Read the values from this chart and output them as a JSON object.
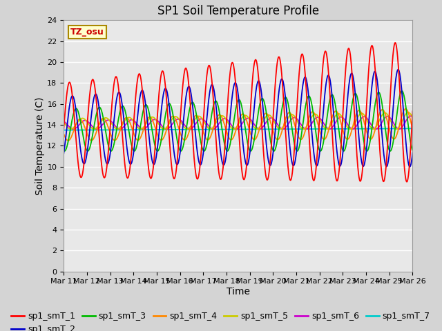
{
  "title": "SP1 Soil Temperature Profile",
  "xlabel": "Time",
  "ylabel": "Soil Temperature (C)",
  "ylim": [
    0,
    24
  ],
  "x_tick_labels": [
    "Mar 11",
    "Mar 12",
    "Mar 13",
    "Mar 14",
    "Mar 15",
    "Mar 16",
    "Mar 17",
    "Mar 18",
    "Mar 19",
    "Mar 20",
    "Mar 21",
    "Mar 22",
    "Mar 23",
    "Mar 24",
    "Mar 25",
    "Mar 26"
  ],
  "legend_entries": [
    "sp1_smT_1",
    "sp1_smT_2",
    "sp1_smT_3",
    "sp1_smT_4",
    "sp1_smT_5",
    "sp1_smT_6",
    "sp1_smT_7"
  ],
  "line_colors": [
    "#ff0000",
    "#0000cc",
    "#00bb00",
    "#ff8800",
    "#cccc00",
    "#cc00cc",
    "#00cccc"
  ],
  "tz_label": "TZ_osu",
  "tz_text_color": "#cc0000",
  "tz_bg_color": "#ffffcc",
  "tz_border_color": "#aa8800",
  "fig_bg_color": "#d4d4d4",
  "axes_bg_color": "#e8e8e8",
  "grid_color": "#ffffff",
  "title_fontsize": 12,
  "axis_label_fontsize": 10,
  "tick_fontsize": 8,
  "legend_fontsize": 9
}
